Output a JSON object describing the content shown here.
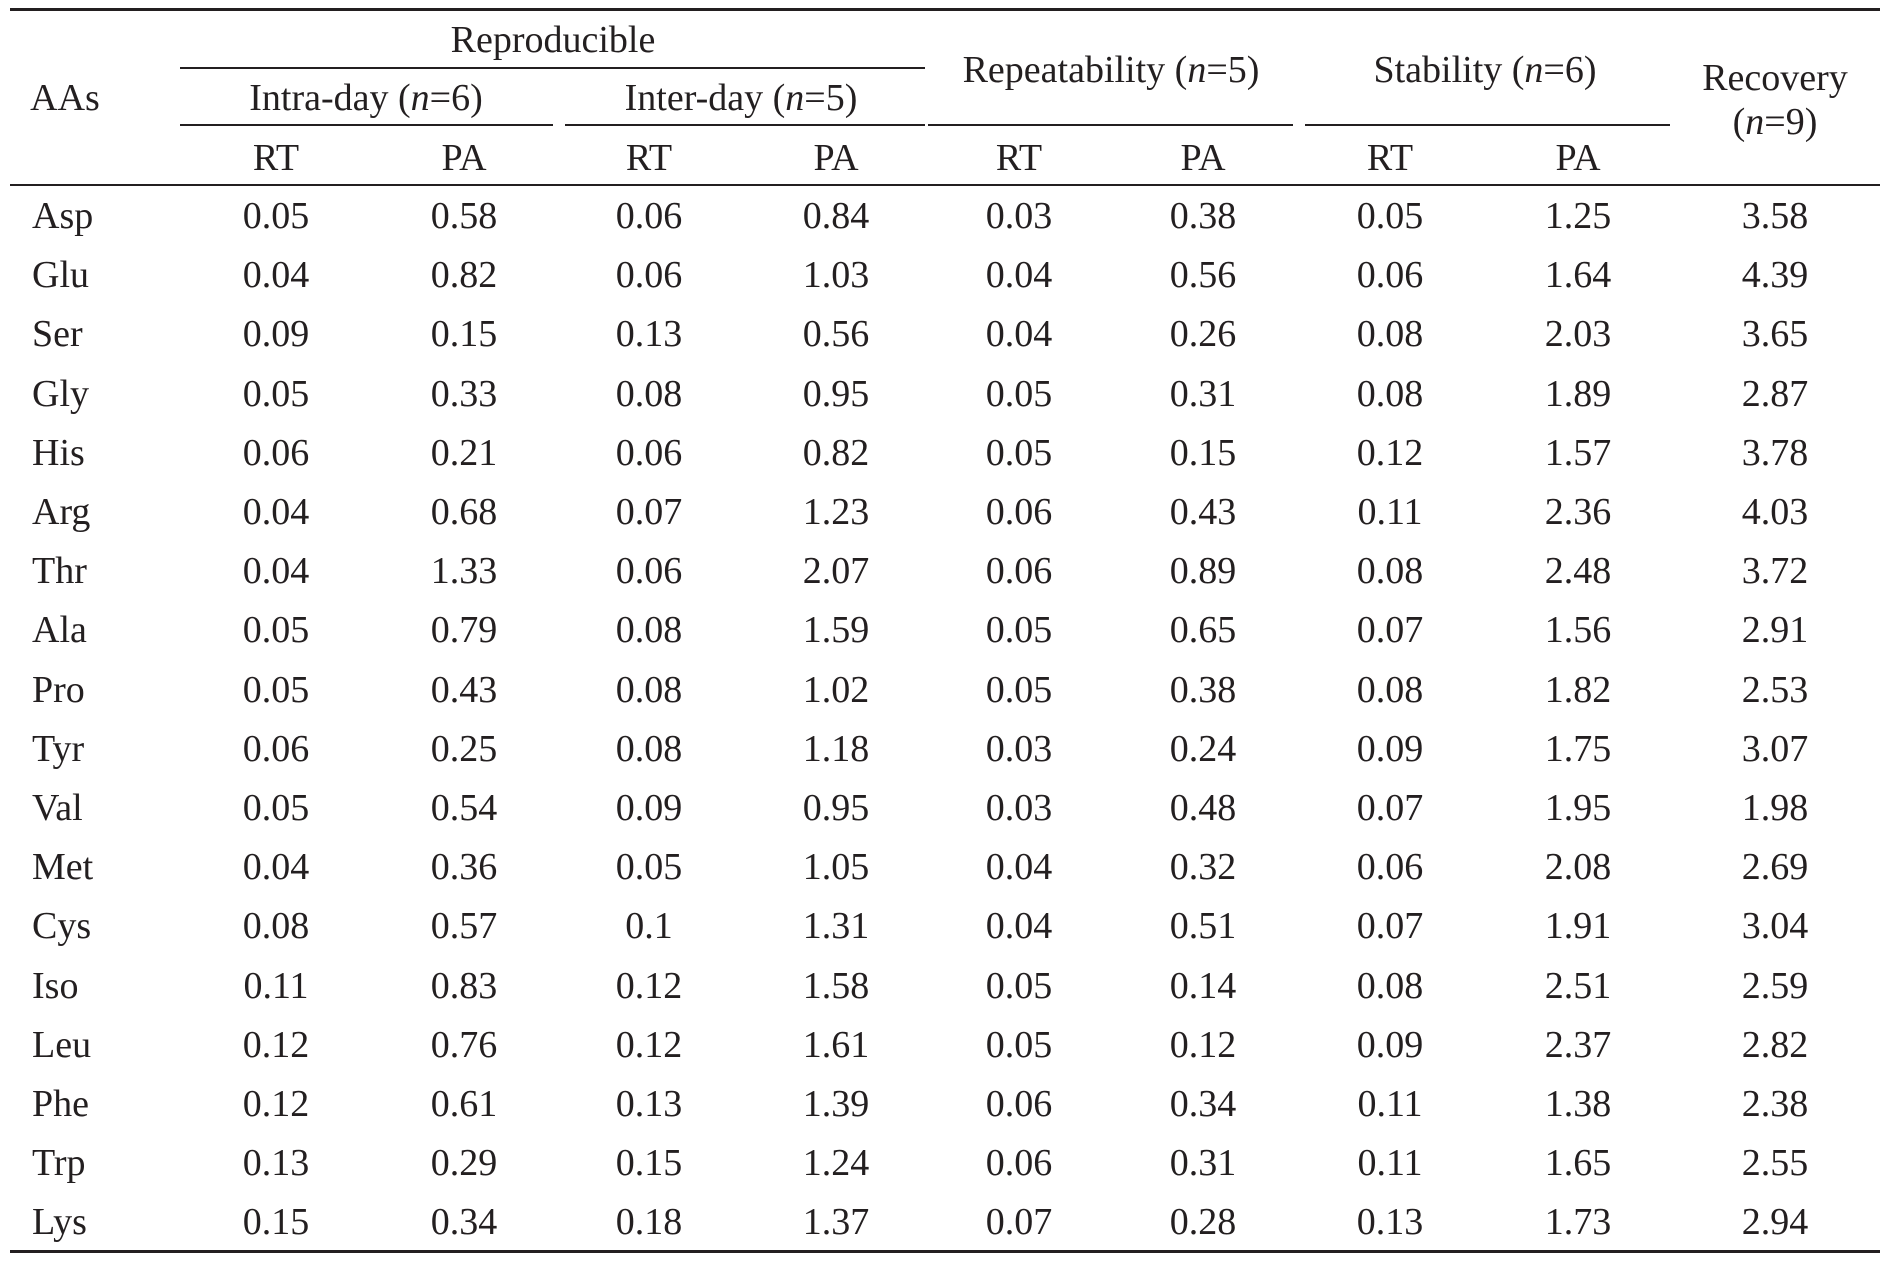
{
  "table": {
    "header": {
      "aas": "AAs",
      "reproducible": "Reproducible",
      "intra_day_pre": "Intra-day (",
      "intra_day_n": "n",
      "intra_day_post": "=6)",
      "inter_day_pre": "Inter-day (",
      "inter_day_n": "n",
      "inter_day_post": "=5)",
      "repeatability_pre": "Repeatability (",
      "repeatability_n": "n",
      "repeatability_post": "=5)",
      "stability_pre": "Stability (",
      "stability_n": "n",
      "stability_post": "=6)",
      "recovery": "Recovery",
      "recovery_n_pre": "(",
      "recovery_n": "n",
      "recovery_n_post": "=9)",
      "rt": "RT",
      "pa": "PA"
    },
    "rows": [
      {
        "aa": "Asp",
        "v": [
          "0.05",
          "0.58",
          "0.06",
          "0.84",
          "0.03",
          "0.38",
          "0.05",
          "1.25",
          "3.58"
        ]
      },
      {
        "aa": "Glu",
        "v": [
          "0.04",
          "0.82",
          "0.06",
          "1.03",
          "0.04",
          "0.56",
          "0.06",
          "1.64",
          "4.39"
        ]
      },
      {
        "aa": "Ser",
        "v": [
          "0.09",
          "0.15",
          "0.13",
          "0.56",
          "0.04",
          "0.26",
          "0.08",
          "2.03",
          "3.65"
        ]
      },
      {
        "aa": "Gly",
        "v": [
          "0.05",
          "0.33",
          "0.08",
          "0.95",
          "0.05",
          "0.31",
          "0.08",
          "1.89",
          "2.87"
        ]
      },
      {
        "aa": "His",
        "v": [
          "0.06",
          "0.21",
          "0.06",
          "0.82",
          "0.05",
          "0.15",
          "0.12",
          "1.57",
          "3.78"
        ]
      },
      {
        "aa": "Arg",
        "v": [
          "0.04",
          "0.68",
          "0.07",
          "1.23",
          "0.06",
          "0.43",
          "0.11",
          "2.36",
          "4.03"
        ]
      },
      {
        "aa": "Thr",
        "v": [
          "0.04",
          "1.33",
          "0.06",
          "2.07",
          "0.06",
          "0.89",
          "0.08",
          "2.48",
          "3.72"
        ]
      },
      {
        "aa": "Ala",
        "v": [
          "0.05",
          "0.79",
          "0.08",
          "1.59",
          "0.05",
          "0.65",
          "0.07",
          "1.56",
          "2.91"
        ]
      },
      {
        "aa": "Pro",
        "v": [
          "0.05",
          "0.43",
          "0.08",
          "1.02",
          "0.05",
          "0.38",
          "0.08",
          "1.82",
          "2.53"
        ]
      },
      {
        "aa": "Tyr",
        "v": [
          "0.06",
          "0.25",
          "0.08",
          "1.18",
          "0.03",
          "0.24",
          "0.09",
          "1.75",
          "3.07"
        ]
      },
      {
        "aa": "Val",
        "v": [
          "0.05",
          "0.54",
          "0.09",
          "0.95",
          "0.03",
          "0.48",
          "0.07",
          "1.95",
          "1.98"
        ]
      },
      {
        "aa": "Met",
        "v": [
          "0.04",
          "0.36",
          "0.05",
          "1.05",
          "0.04",
          "0.32",
          "0.06",
          "2.08",
          "2.69"
        ]
      },
      {
        "aa": "Cys",
        "v": [
          "0.08",
          "0.57",
          "0.1",
          "1.31",
          "0.04",
          "0.51",
          "0.07",
          "1.91",
          "3.04"
        ]
      },
      {
        "aa": "Iso",
        "v": [
          "0.11",
          "0.83",
          "0.12",
          "1.58",
          "0.05",
          "0.14",
          "0.08",
          "2.51",
          "2.59"
        ]
      },
      {
        "aa": "Leu",
        "v": [
          "0.12",
          "0.76",
          "0.12",
          "1.61",
          "0.05",
          "0.12",
          "0.09",
          "2.37",
          "2.82"
        ]
      },
      {
        "aa": "Phe",
        "v": [
          "0.12",
          "0.61",
          "0.13",
          "1.39",
          "0.06",
          "0.34",
          "0.11",
          "1.38",
          "2.38"
        ]
      },
      {
        "aa": "Trp",
        "v": [
          "0.13",
          "0.29",
          "0.15",
          "1.24",
          "0.06",
          "0.31",
          "0.11",
          "1.65",
          "2.55"
        ]
      },
      {
        "aa": "Lys",
        "v": [
          "0.15",
          "0.34",
          "0.18",
          "1.37",
          "0.07",
          "0.28",
          "0.13",
          "1.73",
          "2.94"
        ]
      }
    ]
  }
}
